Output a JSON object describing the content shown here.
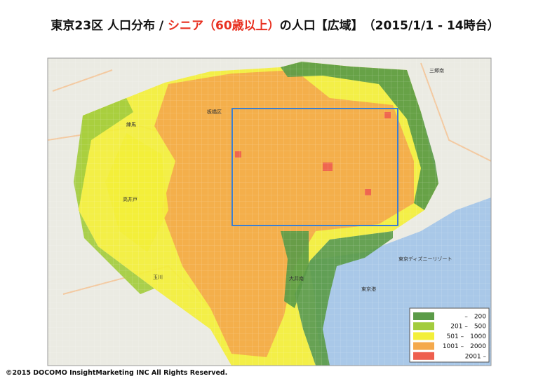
{
  "title": {
    "part1": "東京23区 人口分布 / ",
    "part2": "シニア（60歳以上）",
    "part3": "の人口【広域】　（2015/1/1 - 14時台）"
  },
  "legend": [
    {
      "label": "–　200",
      "color": "#5b9b48"
    },
    {
      "label": "201 –　500",
      "color": "#a3cc3e"
    },
    {
      "label": "501 –　1000",
      "color": "#f3ef3a"
    },
    {
      "label": "1001 –　2000",
      "color": "#f4a94c"
    },
    {
      "label": "2001 –",
      "color": "#ee5f4e"
    }
  ],
  "places": [
    "東京港",
    "東京ディズニーリゾート",
    "大井南",
    "板橋区",
    "練馬",
    "高井戸",
    "玉川",
    "三郷南"
  ],
  "copyright": "©2015 DOCOMO InsightMarketing INC All Rights Reserved."
}
